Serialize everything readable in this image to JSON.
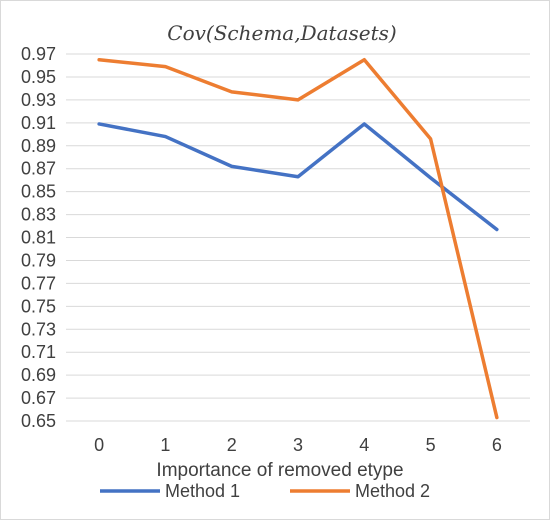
{
  "chart_data": {
    "type": "line",
    "title": "Cov(Schema,Datasets)",
    "xlabel": "Importance of removed etype",
    "ylabel": "",
    "categories": [
      "0",
      "1",
      "2",
      "3",
      "4",
      "5",
      "6"
    ],
    "ylim": [
      0.65,
      0.97
    ],
    "yticks": [
      "0.65",
      "0.67",
      "0.69",
      "0.71",
      "0.73",
      "0.75",
      "0.77",
      "0.79",
      "0.81",
      "0.83",
      "0.85",
      "0.87",
      "0.89",
      "0.91",
      "0.93",
      "0.95",
      "0.97"
    ],
    "grid": true,
    "legend_position": "bottom",
    "series": [
      {
        "name": "Method 1",
        "color": "#4472c4",
        "values": [
          0.909,
          0.898,
          0.872,
          0.863,
          0.909,
          0.862,
          0.817
        ]
      },
      {
        "name": "Method 2",
        "color": "#ed7d31",
        "values": [
          0.965,
          0.959,
          0.937,
          0.93,
          0.965,
          0.896,
          0.653
        ]
      }
    ]
  }
}
